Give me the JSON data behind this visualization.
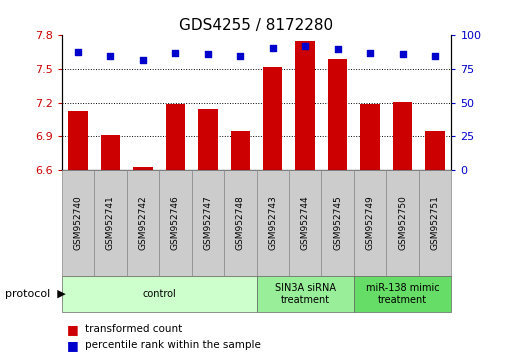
{
  "title": "GDS4255 / 8172280",
  "samples": [
    "GSM952740",
    "GSM952741",
    "GSM952742",
    "GSM952746",
    "GSM952747",
    "GSM952748",
    "GSM952743",
    "GSM952744",
    "GSM952745",
    "GSM952749",
    "GSM952750",
    "GSM952751"
  ],
  "bar_values": [
    7.13,
    6.91,
    6.63,
    7.19,
    7.14,
    6.95,
    7.52,
    7.75,
    7.59,
    7.19,
    7.21,
    6.95
  ],
  "dot_values": [
    88,
    85,
    82,
    87,
    86,
    85,
    91,
    92,
    90,
    87,
    86,
    85
  ],
  "ylim_left": [
    6.6,
    7.8
  ],
  "ylim_right": [
    0,
    100
  ],
  "yticks_left": [
    6.6,
    6.9,
    7.2,
    7.5,
    7.8
  ],
  "yticks_right": [
    0,
    25,
    50,
    75,
    100
  ],
  "bar_color": "#CC0000",
  "dot_color": "#0000CC",
  "groups": [
    {
      "label": "control",
      "start": 0,
      "end": 6,
      "color": "#CCFFCC"
    },
    {
      "label": "SIN3A siRNA\ntreatment",
      "start": 6,
      "end": 9,
      "color": "#99EE99"
    },
    {
      "label": "miR-138 mimic\ntreatment",
      "start": 9,
      "end": 12,
      "color": "#66DD66"
    }
  ],
  "protocol_label": "protocol",
  "legend_bar_label": "transformed count",
  "legend_dot_label": "percentile rank within the sample",
  "background_color": "#ffffff",
  "tick_label_color_left": "#CC0000",
  "tick_label_color_right": "#0000CC",
  "sample_box_color": "#CCCCCC",
  "title_fontsize": 11,
  "bar_width": 0.6,
  "xlim": [
    -0.5,
    11.5
  ]
}
